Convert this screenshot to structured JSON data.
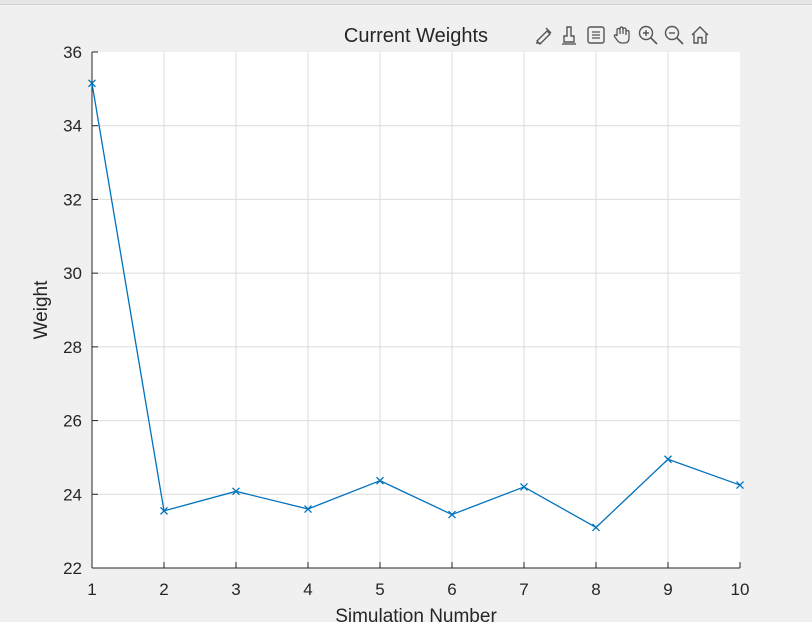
{
  "chart_data": {
    "type": "line",
    "title": "Current Weights",
    "xlabel": "Simulation Number",
    "ylabel": "Weight",
    "xlim": [
      1,
      10
    ],
    "ylim": [
      22,
      36
    ],
    "xticks": [
      "1",
      "2",
      "3",
      "4",
      "5",
      "6",
      "7",
      "8",
      "9",
      "10"
    ],
    "yticks": [
      "22",
      "24",
      "26",
      "28",
      "30",
      "32",
      "34",
      "36"
    ],
    "grid": true,
    "marker": "x",
    "line_color": "#0072bd",
    "series": [
      {
        "x": [
          1,
          2,
          3,
          4,
          5,
          6,
          7,
          8,
          9,
          10
        ],
        "values": [
          35.15,
          23.55,
          24.08,
          23.6,
          24.37,
          23.45,
          24.2,
          23.1,
          24.95,
          24.25
        ]
      }
    ]
  },
  "toolbar": {
    "buttons": [
      "brush-icon",
      "data-tips-icon",
      "export-icon",
      "pan-icon",
      "zoom-in-icon",
      "zoom-out-icon",
      "home-icon"
    ]
  }
}
